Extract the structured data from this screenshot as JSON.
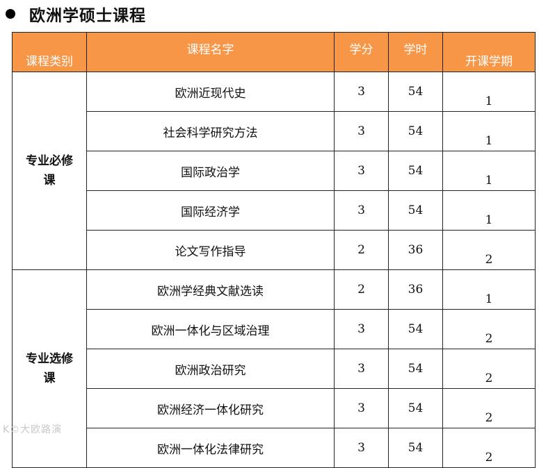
{
  "heading": {
    "title": "欧洲学硕士课程"
  },
  "table": {
    "headers": {
      "category": "课程类别",
      "name": "课程名字",
      "credit": "学分",
      "hours": "学时",
      "term": "开课学期"
    },
    "groups": [
      {
        "category_line1": "专业必修",
        "category_line2": "课",
        "rows": [
          {
            "name": "欧洲近现代史",
            "credit": "3",
            "hours": "54",
            "term": "1"
          },
          {
            "name": "社会科学研究方法",
            "credit": "3",
            "hours": "54",
            "term": "1"
          },
          {
            "name": "国际政治学",
            "credit": "3",
            "hours": "54",
            "term": "1"
          },
          {
            "name": "国际经济学",
            "credit": "3",
            "hours": "54",
            "term": "1"
          },
          {
            "name": "论文写作指导",
            "credit": "2",
            "hours": "36",
            "term": "2"
          }
        ]
      },
      {
        "category_line1": "专业选修",
        "category_line2": "课",
        "rows": [
          {
            "name": "欧洲学经典文献选读",
            "credit": "2",
            "hours": "36",
            "term": "1"
          },
          {
            "name": "欧洲一体化与区域治理",
            "credit": "3",
            "hours": "54",
            "term": "2"
          },
          {
            "name": "欧洲政治研究",
            "credit": "3",
            "hours": "54",
            "term": "2"
          },
          {
            "name": "欧洲经济一体化研究",
            "credit": "3",
            "hours": "54",
            "term": "2"
          },
          {
            "name": "欧洲一体化法律研究",
            "credit": "3",
            "hours": "54",
            "term": "2"
          }
        ]
      }
    ]
  },
  "watermark": "K©大欧路演"
}
